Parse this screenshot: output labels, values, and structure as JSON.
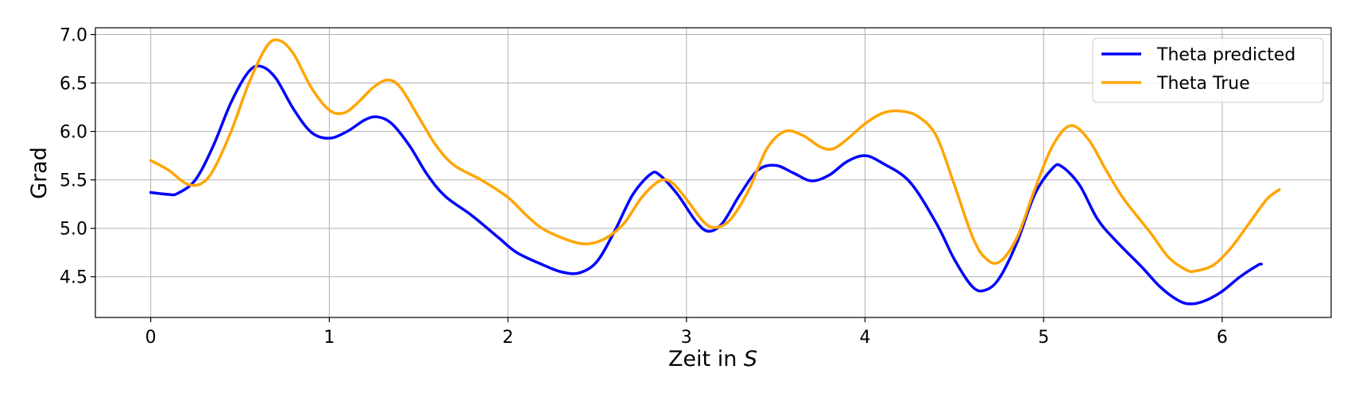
{
  "chart_data": {
    "type": "line",
    "xlabel": "Zeit in S",
    "xlabel_parts": {
      "text": "Zeit in ",
      "italic": "S"
    },
    "ylabel": "Grad",
    "xlim": [
      -0.31,
      6.61
    ],
    "ylim": [
      4.08,
      7.07
    ],
    "xticks": [
      0,
      1,
      2,
      3,
      4,
      5,
      6
    ],
    "xtick_labels": [
      "0",
      "1",
      "2",
      "3",
      "4",
      "5",
      "6"
    ],
    "yticks": [
      4.5,
      5.0,
      5.5,
      6.0,
      6.5,
      7.0
    ],
    "ytick_labels": [
      "4.5",
      "5.0",
      "5.5",
      "6.0",
      "6.5",
      "7.0"
    ],
    "grid": true,
    "legend_position": "top-right",
    "series": [
      {
        "name": "Theta predicted",
        "color": "#0000ff",
        "points": [
          [
            0.0,
            5.37
          ],
          [
            0.1,
            5.35
          ],
          [
            0.15,
            5.36
          ],
          [
            0.25,
            5.5
          ],
          [
            0.35,
            5.85
          ],
          [
            0.45,
            6.3
          ],
          [
            0.55,
            6.62
          ],
          [
            0.62,
            6.67
          ],
          [
            0.7,
            6.55
          ],
          [
            0.8,
            6.23
          ],
          [
            0.9,
            5.99
          ],
          [
            1.0,
            5.93
          ],
          [
            1.1,
            6.0
          ],
          [
            1.2,
            6.12
          ],
          [
            1.27,
            6.15
          ],
          [
            1.35,
            6.08
          ],
          [
            1.45,
            5.85
          ],
          [
            1.55,
            5.55
          ],
          [
            1.65,
            5.33
          ],
          [
            1.8,
            5.13
          ],
          [
            1.95,
            4.9
          ],
          [
            2.05,
            4.75
          ],
          [
            2.2,
            4.62
          ],
          [
            2.3,
            4.55
          ],
          [
            2.4,
            4.54
          ],
          [
            2.5,
            4.66
          ],
          [
            2.6,
            4.98
          ],
          [
            2.7,
            5.35
          ],
          [
            2.8,
            5.56
          ],
          [
            2.85,
            5.55
          ],
          [
            2.95,
            5.35
          ],
          [
            3.05,
            5.08
          ],
          [
            3.12,
            4.97
          ],
          [
            3.2,
            5.05
          ],
          [
            3.3,
            5.35
          ],
          [
            3.4,
            5.6
          ],
          [
            3.5,
            5.65
          ],
          [
            3.6,
            5.57
          ],
          [
            3.7,
            5.49
          ],
          [
            3.8,
            5.55
          ],
          [
            3.9,
            5.69
          ],
          [
            4.0,
            5.75
          ],
          [
            4.1,
            5.67
          ],
          [
            4.25,
            5.48
          ],
          [
            4.4,
            5.05
          ],
          [
            4.5,
            4.68
          ],
          [
            4.6,
            4.4
          ],
          [
            4.67,
            4.36
          ],
          [
            4.75,
            4.48
          ],
          [
            4.85,
            4.85
          ],
          [
            4.95,
            5.35
          ],
          [
            5.05,
            5.62
          ],
          [
            5.1,
            5.64
          ],
          [
            5.2,
            5.45
          ],
          [
            5.3,
            5.1
          ],
          [
            5.4,
            4.88
          ],
          [
            5.55,
            4.6
          ],
          [
            5.65,
            4.4
          ],
          [
            5.75,
            4.26
          ],
          [
            5.82,
            4.22
          ],
          [
            5.9,
            4.25
          ],
          [
            6.0,
            4.35
          ],
          [
            6.1,
            4.5
          ],
          [
            6.2,
            4.62
          ],
          [
            6.22,
            4.63
          ]
        ]
      },
      {
        "name": "Theta True",
        "color": "#ffa500",
        "points": [
          [
            0.0,
            5.7
          ],
          [
            0.1,
            5.6
          ],
          [
            0.2,
            5.46
          ],
          [
            0.28,
            5.46
          ],
          [
            0.35,
            5.6
          ],
          [
            0.45,
            6.0
          ],
          [
            0.55,
            6.5
          ],
          [
            0.65,
            6.88
          ],
          [
            0.72,
            6.94
          ],
          [
            0.8,
            6.8
          ],
          [
            0.9,
            6.45
          ],
          [
            1.0,
            6.22
          ],
          [
            1.08,
            6.19
          ],
          [
            1.15,
            6.28
          ],
          [
            1.25,
            6.46
          ],
          [
            1.33,
            6.53
          ],
          [
            1.4,
            6.45
          ],
          [
            1.5,
            6.15
          ],
          [
            1.6,
            5.85
          ],
          [
            1.7,
            5.65
          ],
          [
            1.85,
            5.5
          ],
          [
            2.0,
            5.32
          ],
          [
            2.1,
            5.14
          ],
          [
            2.2,
            4.99
          ],
          [
            2.35,
            4.87
          ],
          [
            2.45,
            4.84
          ],
          [
            2.55,
            4.9
          ],
          [
            2.65,
            5.05
          ],
          [
            2.75,
            5.32
          ],
          [
            2.85,
            5.49
          ],
          [
            2.92,
            5.47
          ],
          [
            3.0,
            5.3
          ],
          [
            3.1,
            5.06
          ],
          [
            3.17,
            5.01
          ],
          [
            3.25,
            5.1
          ],
          [
            3.35,
            5.4
          ],
          [
            3.45,
            5.82
          ],
          [
            3.55,
            6.0
          ],
          [
            3.65,
            5.96
          ],
          [
            3.75,
            5.84
          ],
          [
            3.82,
            5.82
          ],
          [
            3.9,
            5.92
          ],
          [
            4.0,
            6.08
          ],
          [
            4.1,
            6.19
          ],
          [
            4.2,
            6.21
          ],
          [
            4.3,
            6.15
          ],
          [
            4.4,
            5.95
          ],
          [
            4.5,
            5.45
          ],
          [
            4.6,
            4.92
          ],
          [
            4.67,
            4.7
          ],
          [
            4.75,
            4.65
          ],
          [
            4.85,
            4.9
          ],
          [
            4.95,
            5.4
          ],
          [
            5.05,
            5.85
          ],
          [
            5.15,
            6.06
          ],
          [
            5.25,
            5.92
          ],
          [
            5.35,
            5.6
          ],
          [
            5.45,
            5.3
          ],
          [
            5.6,
            4.95
          ],
          [
            5.7,
            4.7
          ],
          [
            5.8,
            4.57
          ],
          [
            5.85,
            4.56
          ],
          [
            5.95,
            4.62
          ],
          [
            6.05,
            4.8
          ],
          [
            6.15,
            5.05
          ],
          [
            6.25,
            5.3
          ],
          [
            6.32,
            5.4
          ]
        ]
      }
    ]
  }
}
